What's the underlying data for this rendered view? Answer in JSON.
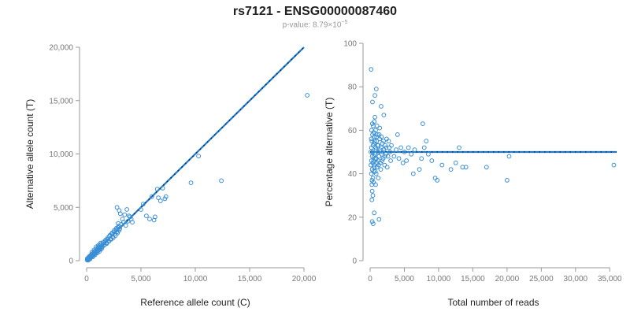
{
  "header": {
    "title": "rs7121 - ENSG00000087460",
    "pvalue_prefix": "p-value: 8.79×10",
    "pvalue_exponent": "−5"
  },
  "colors": {
    "points": "#3a8fd6",
    "line": "#1f78c8"
  },
  "chart_data": [
    {
      "type": "scatter",
      "xlabel": "Reference allele count (C)",
      "ylabel": "Alternative allele count (T)",
      "xlim": [
        0,
        20000
      ],
      "ylim": [
        0,
        20000
      ],
      "xticks": [
        0,
        5000,
        10000,
        15000,
        20000
      ],
      "xtick_labels": [
        "0",
        "5,000",
        "10,000",
        "15,000",
        "20,000"
      ],
      "yticks": [
        0,
        5000,
        10000,
        15000,
        20000
      ],
      "ytick_labels": [
        "0",
        "5,000",
        "10,000",
        "15,000",
        "20,000"
      ],
      "grid": false,
      "fit_line": {
        "x": [
          0,
          20000
        ],
        "y": [
          0,
          20000
        ]
      },
      "points": [
        [
          50,
          60
        ],
        [
          80,
          120
        ],
        [
          120,
          90
        ],
        [
          150,
          200
        ],
        [
          200,
          180
        ],
        [
          250,
          300
        ],
        [
          300,
          250
        ],
        [
          350,
          400
        ],
        [
          400,
          350
        ],
        [
          450,
          500
        ],
        [
          500,
          420
        ],
        [
          550,
          600
        ],
        [
          600,
          700
        ],
        [
          650,
          550
        ],
        [
          700,
          800
        ],
        [
          750,
          650
        ],
        [
          800,
          900
        ],
        [
          850,
          750
        ],
        [
          900,
          1000
        ],
        [
          950,
          850
        ],
        [
          1000,
          1100
        ],
        [
          1050,
          950
        ],
        [
          1100,
          1200
        ],
        [
          1150,
          1050
        ],
        [
          1200,
          1300
        ],
        [
          1250,
          1150
        ],
        [
          1300,
          1400
        ],
        [
          1400,
          1250
        ],
        [
          1500,
          1600
        ],
        [
          1600,
          1450
        ],
        [
          1700,
          1800
        ],
        [
          1800,
          1650
        ],
        [
          1900,
          2000
        ],
        [
          2000,
          1900
        ],
        [
          2100,
          2300
        ],
        [
          2200,
          2050
        ],
        [
          2300,
          2500
        ],
        [
          2400,
          2250
        ],
        [
          2500,
          2700
        ],
        [
          2600,
          2500
        ],
        [
          2700,
          2900
        ],
        [
          2800,
          2700
        ],
        [
          2900,
          3100
        ],
        [
          3000,
          2850
        ],
        [
          100,
          150
        ],
        [
          180,
          260
        ],
        [
          260,
          200
        ],
        [
          340,
          480
        ],
        [
          420,
          360
        ],
        [
          520,
          640
        ],
        [
          620,
          500
        ],
        [
          720,
          880
        ],
        [
          820,
          700
        ],
        [
          920,
          1150
        ],
        [
          1020,
          900
        ],
        [
          1120,
          1350
        ],
        [
          1220,
          1050
        ],
        [
          1320,
          1550
        ],
        [
          1450,
          1300
        ],
        [
          1550,
          1750
        ],
        [
          1650,
          1500
        ],
        [
          1750,
          1950
        ],
        [
          1850,
          1600
        ],
        [
          1950,
          2150
        ],
        [
          2050,
          1800
        ],
        [
          2150,
          2400
        ],
        [
          2250,
          2000
        ],
        [
          2350,
          2600
        ],
        [
          2450,
          2150
        ],
        [
          2550,
          2850
        ],
        [
          2650,
          2350
        ],
        [
          2750,
          3050
        ],
        [
          2850,
          2600
        ],
        [
          2950,
          3250
        ],
        [
          60,
          200
        ],
        [
          140,
          40
        ],
        [
          220,
          380
        ],
        [
          320,
          160
        ],
        [
          480,
          780
        ],
        [
          580,
          360
        ],
        [
          680,
          1000
        ],
        [
          780,
          560
        ],
        [
          880,
          1300
        ],
        [
          980,
          720
        ],
        [
          1080,
          1450
        ],
        [
          1180,
          880
        ],
        [
          1280,
          1650
        ],
        [
          1380,
          1100
        ],
        [
          2800,
          5000
        ],
        [
          3000,
          4700
        ],
        [
          3100,
          4400
        ],
        [
          3300,
          3900
        ],
        [
          3500,
          4300
        ],
        [
          3600,
          3300
        ],
        [
          3700,
          4800
        ],
        [
          3800,
          3700
        ],
        [
          4000,
          4100
        ],
        [
          4200,
          3600
        ],
        [
          3200,
          3400
        ],
        [
          3400,
          3600
        ],
        [
          3900,
          4200
        ],
        [
          4100,
          3900
        ],
        [
          2900,
          3500
        ],
        [
          3050,
          3000
        ],
        [
          5000,
          4800
        ],
        [
          5200,
          5300
        ],
        [
          5500,
          4200
        ],
        [
          6000,
          6000
        ],
        [
          6200,
          3800
        ],
        [
          6500,
          6700
        ],
        [
          6600,
          5900
        ],
        [
          7000,
          6800
        ],
        [
          7200,
          5800
        ],
        [
          7300,
          6000
        ],
        [
          5800,
          3900
        ],
        [
          6300,
          4100
        ],
        [
          6800,
          5600
        ],
        [
          9600,
          7300
        ],
        [
          10300,
          9800
        ],
        [
          12400,
          7500
        ],
        [
          20300,
          15500
        ]
      ]
    },
    {
      "type": "scatter",
      "xlabel": "Total number of reads",
      "ylabel": "Percentage alternative (T)",
      "xlim": [
        0,
        36000
      ],
      "ylim": [
        0,
        100
      ],
      "xticks": [
        0,
        5000,
        10000,
        15000,
        20000,
        25000,
        30000,
        35000
      ],
      "xtick_labels": [
        "0",
        "5,000",
        "10,000",
        "15,000",
        "20,000",
        "25,000",
        "30,000",
        "35,000"
      ],
      "yticks": [
        0,
        20,
        40,
        60,
        80,
        100
      ],
      "ytick_labels": [
        "0",
        "20",
        "40",
        "60",
        "80",
        "100"
      ],
      "grid": false,
      "fit_line": {
        "x": [
          0,
          36000
        ],
        "y": [
          50,
          50
        ]
      },
      "points": [
        [
          150,
          88
        ],
        [
          250,
          28
        ],
        [
          300,
          18
        ],
        [
          350,
          73
        ],
        [
          450,
          17
        ],
        [
          600,
          22
        ],
        [
          700,
          76
        ],
        [
          900,
          79
        ],
        [
          1300,
          19
        ],
        [
          1600,
          71
        ],
        [
          2000,
          67
        ],
        [
          200,
          46
        ],
        [
          200,
          52
        ],
        [
          250,
          55
        ],
        [
          300,
          48
        ],
        [
          300,
          42
        ],
        [
          350,
          58
        ],
        [
          400,
          50
        ],
        [
          400,
          38
        ],
        [
          450,
          62
        ],
        [
          500,
          46
        ],
        [
          550,
          54
        ],
        [
          600,
          44
        ],
        [
          650,
          57
        ],
        [
          700,
          49
        ],
        [
          750,
          41
        ],
        [
          800,
          60
        ],
        [
          850,
          51
        ],
        [
          900,
          47
        ],
        [
          950,
          55
        ],
        [
          1000,
          43
        ],
        [
          1050,
          58
        ],
        [
          1100,
          50
        ],
        [
          1150,
          46
        ],
        [
          1200,
          53
        ],
        [
          1300,
          48
        ],
        [
          1400,
          56
        ],
        [
          1500,
          45
        ],
        [
          1600,
          52
        ],
        [
          1700,
          49
        ],
        [
          1800,
          54
        ],
        [
          1900,
          47
        ],
        [
          2000,
          51
        ],
        [
          2100,
          44
        ],
        [
          2200,
          53
        ],
        [
          2300,
          49
        ],
        [
          2400,
          56
        ],
        [
          2600,
          48
        ],
        [
          2800,
          52
        ],
        [
          3000,
          46
        ],
        [
          250,
          35
        ],
        [
          300,
          32
        ],
        [
          400,
          30
        ],
        [
          500,
          36
        ],
        [
          600,
          64
        ],
        [
          700,
          66
        ],
        [
          800,
          35
        ],
        [
          1000,
          62
        ],
        [
          1200,
          38
        ],
        [
          1400,
          61
        ],
        [
          100,
          50
        ],
        [
          120,
          44
        ],
        [
          160,
          56
        ],
        [
          180,
          40
        ],
        [
          220,
          60
        ],
        [
          280,
          37
        ],
        [
          320,
          63
        ],
        [
          380,
          45
        ],
        [
          420,
          53
        ],
        [
          480,
          41
        ],
        [
          520,
          59
        ],
        [
          560,
          48
        ],
        [
          620,
          43
        ],
        [
          680,
          55
        ],
        [
          740,
          47
        ],
        [
          820,
          52
        ],
        [
          880,
          40
        ],
        [
          940,
          57
        ],
        [
          1020,
          45
        ],
        [
          1080,
          53
        ],
        [
          1160,
          50
        ],
        [
          1240,
          44
        ],
        [
          1320,
          58
        ],
        [
          1450,
          51
        ],
        [
          1550,
          42
        ],
        [
          1650,
          57
        ],
        [
          1750,
          46
        ],
        [
          1850,
          50
        ],
        [
          1950,
          55
        ],
        [
          2150,
          48
        ],
        [
          2350,
          52
        ],
        [
          2500,
          43
        ],
        [
          2700,
          55
        ],
        [
          2900,
          50
        ],
        [
          3100,
          53
        ],
        [
          3500,
          48
        ],
        [
          3800,
          51
        ],
        [
          4000,
          58
        ],
        [
          4200,
          47
        ],
        [
          4500,
          52
        ],
        [
          4800,
          45
        ],
        [
          5000,
          50
        ],
        [
          5300,
          46
        ],
        [
          5600,
          52
        ],
        [
          6000,
          49
        ],
        [
          6300,
          40
        ],
        [
          6500,
          51
        ],
        [
          7200,
          42
        ],
        [
          7500,
          47
        ],
        [
          7700,
          63
        ],
        [
          7900,
          52
        ],
        [
          8200,
          55
        ],
        [
          8500,
          49
        ],
        [
          9000,
          46
        ],
        [
          9500,
          38
        ],
        [
          9800,
          37
        ],
        [
          10500,
          44
        ],
        [
          11800,
          42
        ],
        [
          12500,
          45
        ],
        [
          13000,
          52
        ],
        [
          13500,
          43
        ],
        [
          14000,
          43
        ],
        [
          17000,
          43
        ],
        [
          20000,
          37
        ],
        [
          20300,
          48
        ],
        [
          35600,
          44
        ]
      ]
    }
  ]
}
